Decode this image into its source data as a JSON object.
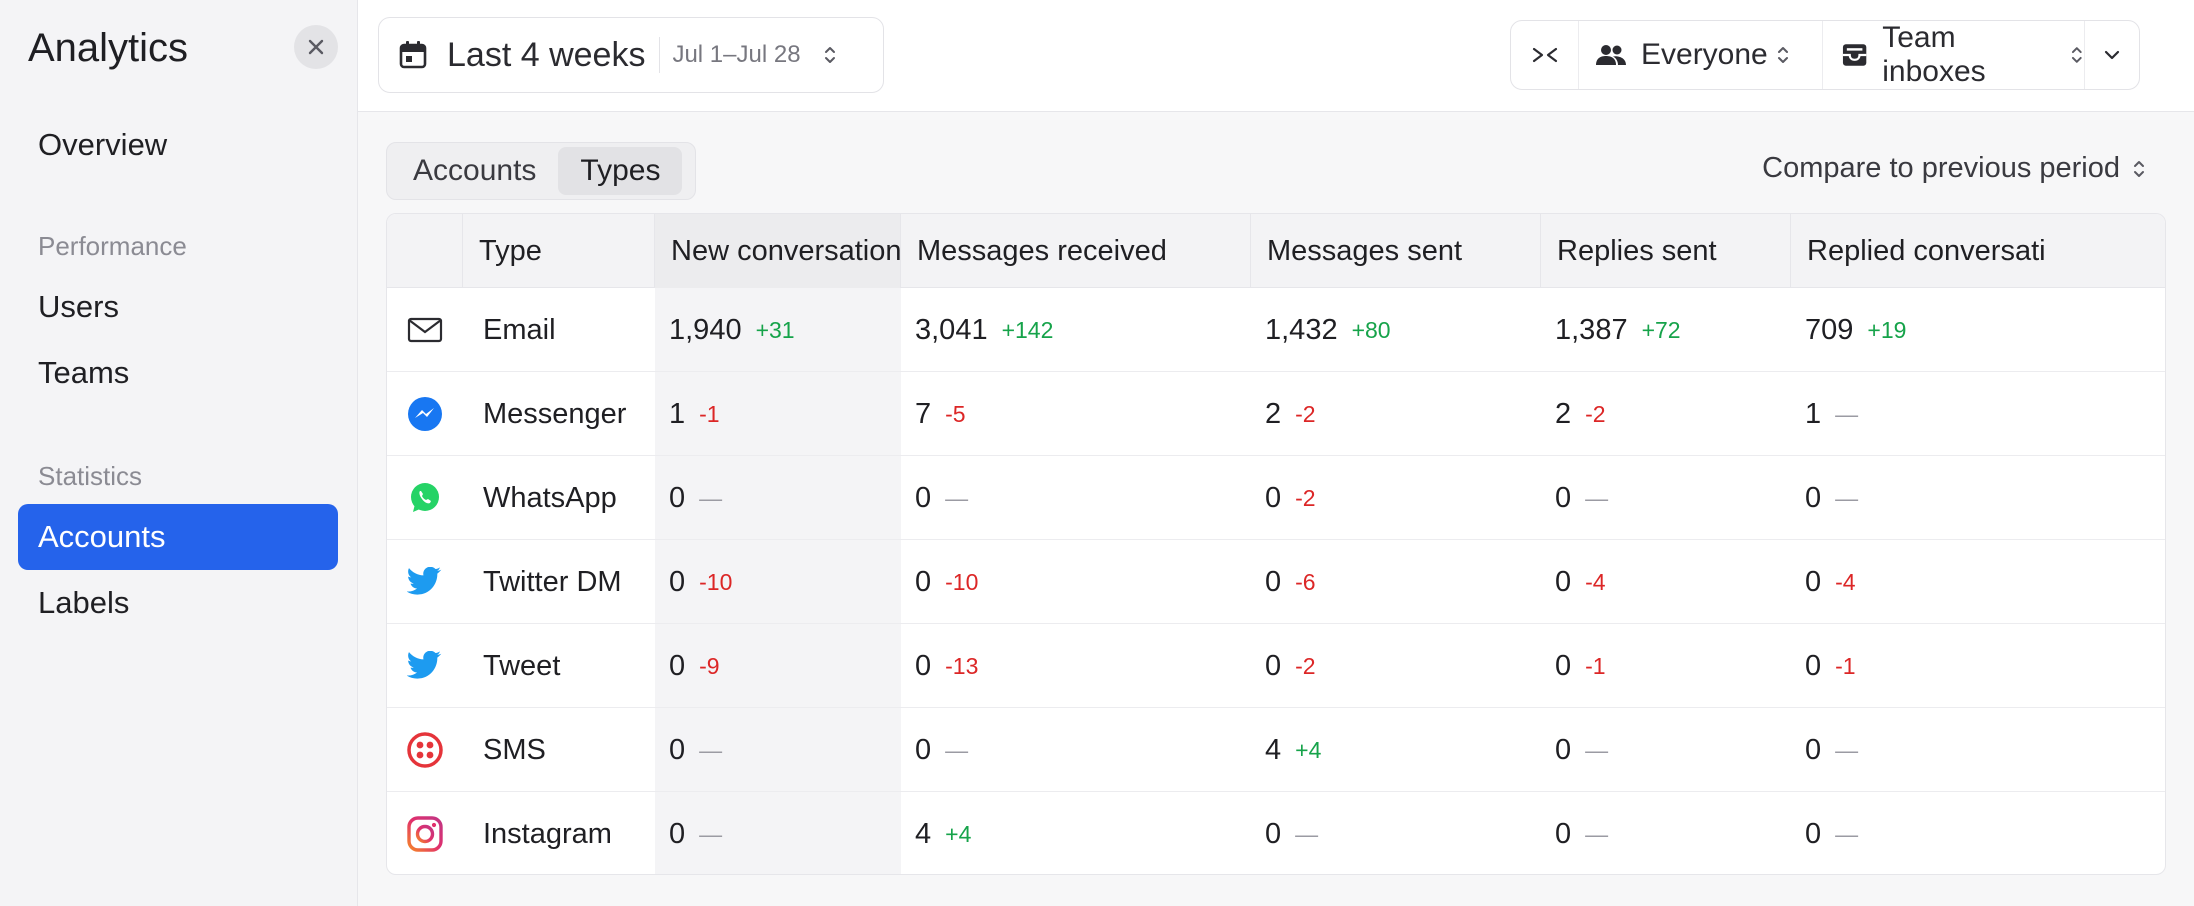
{
  "sidebar": {
    "title": "Analytics",
    "items": {
      "overview": "Overview",
      "users": "Users",
      "teams": "Teams",
      "accounts": "Accounts",
      "labels": "Labels"
    },
    "sections": {
      "performance": "Performance",
      "statistics": "Statistics"
    }
  },
  "topbar": {
    "date_label": "Last 4 weeks",
    "date_range": "Jul 1–Jul 28",
    "filter_people": "Everyone",
    "filter_inboxes": "Team inboxes"
  },
  "tabs": {
    "accounts": "Accounts",
    "types": "Types"
  },
  "compare_label": "Compare to previous period",
  "table": {
    "headers": {
      "type": "Type",
      "new_conversations": "New conversations",
      "messages_received": "Messages received",
      "messages_sent": "Messages sent",
      "replies_sent": "Replies sent",
      "replied_conversations": "Replied conversati"
    },
    "rows": [
      {
        "icon": "email-icon",
        "type": "Email",
        "nc": "1,940",
        "nc_d": "+31",
        "mr": "3,041",
        "mr_d": "+142",
        "ms": "1,432",
        "ms_d": "+80",
        "rs": "1,387",
        "rs_d": "+72",
        "rc": "709",
        "rc_d": "+19"
      },
      {
        "icon": "messenger-icon",
        "type": "Messenger",
        "nc": "1",
        "nc_d": "-1",
        "mr": "7",
        "mr_d": "-5",
        "ms": "2",
        "ms_d": "-2",
        "rs": "2",
        "rs_d": "-2",
        "rc": "1",
        "rc_d": "—"
      },
      {
        "icon": "whatsapp-icon",
        "type": "WhatsApp",
        "nc": "0",
        "nc_d": "—",
        "mr": "0",
        "mr_d": "—",
        "ms": "0",
        "ms_d": "-2",
        "rs": "0",
        "rs_d": "—",
        "rc": "0",
        "rc_d": "—"
      },
      {
        "icon": "twitter-icon",
        "type": "Twitter DM",
        "nc": "0",
        "nc_d": "-10",
        "mr": "0",
        "mr_d": "-10",
        "ms": "0",
        "ms_d": "-6",
        "rs": "0",
        "rs_d": "-4",
        "rc": "0",
        "rc_d": "-4"
      },
      {
        "icon": "twitter-icon",
        "type": "Tweet",
        "nc": "0",
        "nc_d": "-9",
        "mr": "0",
        "mr_d": "-13",
        "ms": "0",
        "ms_d": "-2",
        "rs": "0",
        "rs_d": "-1",
        "rc": "0",
        "rc_d": "-1"
      },
      {
        "icon": "sms-icon",
        "type": "SMS",
        "nc": "0",
        "nc_d": "—",
        "mr": "0",
        "mr_d": "—",
        "ms": "4",
        "ms_d": "+4",
        "rs": "0",
        "rs_d": "—",
        "rc": "0",
        "rc_d": "—"
      },
      {
        "icon": "instagram-icon",
        "type": "Instagram",
        "nc": "0",
        "nc_d": "—",
        "mr": "4",
        "mr_d": "+4",
        "ms": "0",
        "ms_d": "—",
        "rs": "0",
        "rs_d": "—",
        "rc": "0",
        "rc_d": "—"
      }
    ]
  },
  "colors": {
    "accent": "#2563eb",
    "positive": "#16a34a",
    "negative": "#dc2626",
    "messenger": "#1877f2",
    "whatsapp": "#25d366",
    "twitter": "#1d9bf0",
    "sms": "#e5343a",
    "instagram": "#e1306c"
  }
}
